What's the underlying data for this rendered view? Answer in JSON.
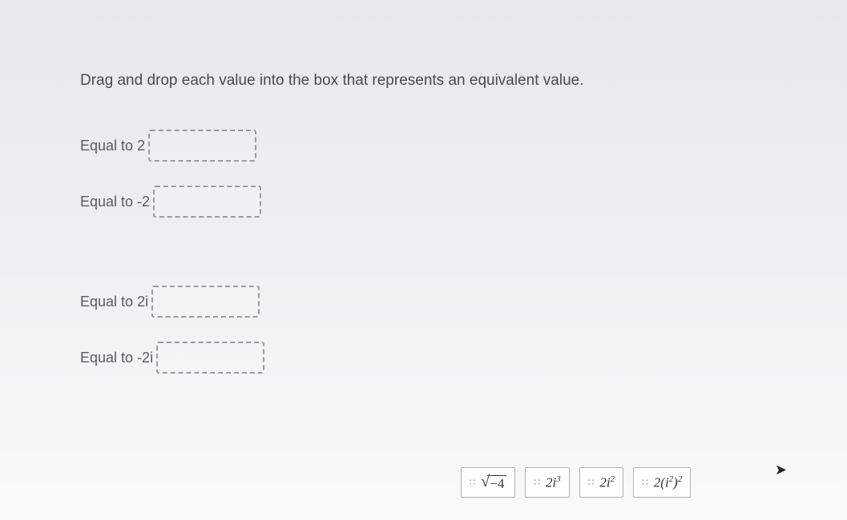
{
  "colors": {
    "background_top": "#e8e8ea",
    "background_bottom": "#fafafa",
    "text_primary": "#4a4a52",
    "text_secondary": "#5a5a62",
    "box_border": "#9a9aa0",
    "tile_bg": "#ffffff",
    "tile_border": "#b5b5bb"
  },
  "instruction": "Drag and drop each value into the box that represents an equivalent value.",
  "drop_targets": [
    {
      "label_prefix": "Equal to ",
      "label_value": "2",
      "has_gap_after": false
    },
    {
      "label_prefix": "Equal to ",
      "label_value": "-2",
      "has_gap_after": true
    },
    {
      "label_prefix": "Equal to ",
      "label_value": "2i",
      "has_gap_after": false
    },
    {
      "label_prefix": "Equal to ",
      "label_value": "-2i",
      "has_gap_after": false
    }
  ],
  "drag_items": [
    {
      "id": "sqrt-neg4",
      "type": "sqrt",
      "radicand": "−4"
    },
    {
      "id": "2i-cubed",
      "type": "power",
      "coef": "2",
      "base": "i",
      "exp": "3"
    },
    {
      "id": "2i-squared",
      "type": "power",
      "coef": "2",
      "base": "i",
      "exp": "2"
    },
    {
      "id": "2-isq-sq",
      "type": "nested",
      "coef": "2",
      "inner_base": "i",
      "inner_exp": "2",
      "outer_exp": "2"
    }
  ]
}
